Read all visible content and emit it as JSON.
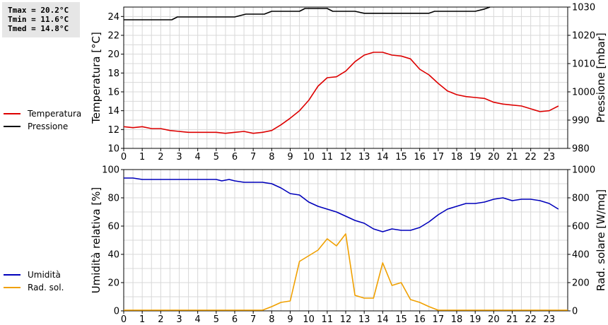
{
  "stats": {
    "tmax": "Tmax = 20.2°C",
    "tmin": "Tmin = 11.6°C",
    "tmed": "Tmed = 14.8°C"
  },
  "colors": {
    "temperature": "#dd0000",
    "pressure": "#000000",
    "humidity": "#0000bb",
    "radiation": "#f0a000",
    "grid": "#d8d8d8",
    "stats_bg": "#e6e6e6"
  },
  "chart_data": [
    {
      "type": "line",
      "x_ticks": [
        "0",
        "1",
        "2",
        "3",
        "4",
        "5",
        "6",
        "7",
        "8",
        "9",
        "10",
        "11",
        "12",
        "13",
        "14",
        "15",
        "16",
        "17",
        "18",
        "19",
        "20",
        "21",
        "22",
        "23"
      ],
      "xlim": [
        0,
        24
      ],
      "grid": true,
      "left_axis": {
        "label": "Temperatura [°C]",
        "ylim": [
          10,
          25
        ],
        "ticks": [
          10,
          12,
          14,
          16,
          18,
          20,
          22,
          24
        ]
      },
      "right_axis": {
        "label": "Pressione [mbar]",
        "ylim": [
          980,
          1030
        ],
        "ticks": [
          980,
          990,
          1000,
          1010,
          1020,
          1030
        ]
      },
      "legend": [
        {
          "label": "Temperatura",
          "color": "#dd0000"
        },
        {
          "label": "Pressione",
          "color": "#000000"
        }
      ],
      "series": [
        {
          "name": "Temperatura",
          "axis": "left",
          "color": "#dd0000",
          "x": [
            0,
            0.5,
            1,
            1.5,
            2,
            2.5,
            3,
            3.5,
            4,
            4.5,
            5,
            5.5,
            6,
            6.5,
            7,
            7.5,
            8,
            8.5,
            9,
            9.5,
            10,
            10.5,
            11,
            11.5,
            12,
            12.5,
            13,
            13.5,
            14,
            14.5,
            15,
            15.5,
            16,
            16.5,
            17,
            17.5,
            18,
            18.5,
            19,
            19.5,
            20,
            20.5,
            21,
            21.5,
            22,
            22.5,
            23,
            23.5
          ],
          "values": [
            12.3,
            12.2,
            12.3,
            12.1,
            12.1,
            11.9,
            11.8,
            11.7,
            11.7,
            11.7,
            11.7,
            11.6,
            11.7,
            11.8,
            11.6,
            11.7,
            11.9,
            12.5,
            13.2,
            14.0,
            15.1,
            16.6,
            17.5,
            17.6,
            18.2,
            19.2,
            19.9,
            20.2,
            20.2,
            19.9,
            19.8,
            19.5,
            18.4,
            17.8,
            16.9,
            16.1,
            15.7,
            15.5,
            15.4,
            15.3,
            14.9,
            14.7,
            14.6,
            14.5,
            14.2,
            13.9,
            14.0,
            14.5
          ]
        },
        {
          "name": "Pressione",
          "axis": "right",
          "color": "#000000",
          "x": [
            0,
            2.6,
            2.9,
            5.5,
            6,
            6.6,
            7,
            7.6,
            8,
            9.5,
            9.8,
            11,
            11.3,
            12.5,
            13,
            14.5,
            15,
            16.5,
            16.8,
            18.5,
            19,
            19.5,
            19.8
          ],
          "values": [
            1025.5,
            1025.5,
            1026.5,
            1026.5,
            1026.5,
            1027.5,
            1027.5,
            1027.5,
            1028.5,
            1028.5,
            1029.5,
            1029.5,
            1028.5,
            1028.5,
            1027.8,
            1027.8,
            1027.8,
            1027.8,
            1028.5,
            1028.5,
            1028.5,
            1029.3,
            1030
          ]
        }
      ]
    },
    {
      "type": "line",
      "x_ticks": [
        "0",
        "1",
        "2",
        "3",
        "4",
        "5",
        "6",
        "7",
        "8",
        "9",
        "10",
        "11",
        "12",
        "13",
        "14",
        "15",
        "16",
        "17",
        "18",
        "19",
        "20",
        "21",
        "22",
        "23"
      ],
      "xlim": [
        0,
        24
      ],
      "grid": true,
      "left_axis": {
        "label": "Umidità relativa [%]",
        "ylim": [
          0,
          100
        ],
        "ticks": [
          0,
          20,
          40,
          60,
          80,
          100
        ]
      },
      "right_axis": {
        "label": "Rad. solare [W/mq]",
        "ylim": [
          0,
          1000
        ],
        "ticks": [
          0,
          200,
          400,
          600,
          800,
          1000
        ]
      },
      "legend": [
        {
          "label": "Umidità",
          "color": "#0000bb"
        },
        {
          "label": "Rad. sol.",
          "color": "#f0a000"
        }
      ],
      "series": [
        {
          "name": "Umidità",
          "axis": "left",
          "color": "#0000bb",
          "x": [
            0,
            0.5,
            1,
            2,
            3,
            4,
            5,
            5.3,
            5.7,
            6,
            6.5,
            7,
            7.5,
            8,
            8.5,
            9,
            9.5,
            10,
            10.5,
            11,
            11.5,
            12,
            12.5,
            13,
            13.5,
            14,
            14.5,
            15,
            15.5,
            16,
            16.5,
            17,
            17.5,
            18,
            18.5,
            19,
            19.5,
            20,
            20.5,
            21,
            21.5,
            22,
            22.5,
            23,
            23.5
          ],
          "values": [
            94,
            94,
            93,
            93,
            93,
            93,
            93,
            92,
            93,
            92,
            91,
            91,
            91,
            90,
            87,
            83,
            82,
            77,
            74,
            72,
            70,
            67,
            64,
            62,
            58,
            56,
            58,
            57,
            57,
            59,
            63,
            68,
            72,
            74,
            76,
            76,
            77,
            79,
            80,
            78,
            79,
            79,
            78,
            76,
            72
          ]
        },
        {
          "name": "Rad. sol.",
          "axis": "right",
          "color": "#f0a000",
          "x": [
            0,
            7.5,
            8,
            8.5,
            9,
            9.5,
            10,
            10.5,
            11,
            11.5,
            12,
            12.5,
            13,
            13.5,
            14,
            14.5,
            15,
            15.5,
            16,
            16.5,
            17,
            24
          ],
          "values": [
            5,
            5,
            30,
            60,
            70,
            350,
            390,
            430,
            510,
            460,
            545,
            110,
            90,
            90,
            340,
            180,
            200,
            80,
            60,
            30,
            5,
            5
          ]
        }
      ]
    }
  ]
}
